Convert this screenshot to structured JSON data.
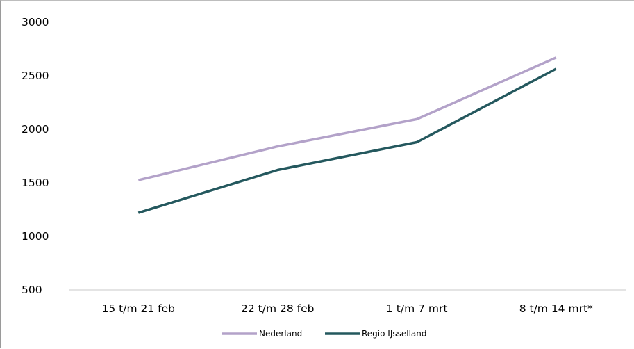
{
  "chart_data": {
    "type": "line",
    "categories": [
      "15 t/m 21 feb",
      "22 t/m 28 feb",
      "1 t/m 7 mrt",
      "8 t/m 14 mrt*"
    ],
    "series": [
      {
        "name": "Nederland",
        "values": [
          1525,
          1840,
          2095,
          2670
        ],
        "color": "#b3a2c9"
      },
      {
        "name": "Regio IJsselland",
        "values": [
          1220,
          1620,
          1880,
          2565
        ],
        "color": "#24585e"
      }
    ],
    "yticks": [
      500,
      1000,
      1500,
      2000,
      2500,
      3000
    ],
    "ylim": [
      500,
      3000
    ],
    "title": "",
    "xlabel": "",
    "ylabel": "",
    "grid": false,
    "legend_position": "bottom"
  }
}
